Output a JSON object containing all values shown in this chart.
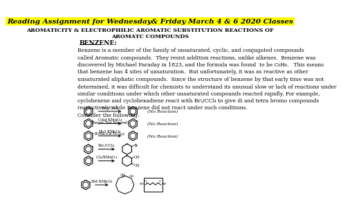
{
  "title_text": "Reading Assignment for Wednesday& Friday March 4 & 6 2020 Classes",
  "subtitle": "AROMATICITY & ELECTROPHILIC AROMATIC SUBSTITUTION REACTIONS OF\nAROMATC COMPOUNDS",
  "section": "BENZENE:",
  "body": "Benzene is a member of the family of unsaturated, cyclic, and conjugated compounds\ncalled Aromatic compounds.  They resist addition reactions, unlike alkenes.  Benzene was\ndiscovered by Michael Faraday in 1823, and the formula was found  to be C₆H₆.   This means\nthat benzene has 4 sites of unsaturation.  But unfortunately, it was as reactive as other\nunsaturated aliphatic compounds.  Since the structure of benzene by that early time was not\ndetermined, it was difficult for chemists to understand its unusual slow or lack of reactions under\nsimilar conditions under which other unsaturated compounds reacted rapidly. For example,\ncyclohexene and cyclohexadiene react with Br₂/CCl₄ to give di and tetra bromo compounds\nrespectively while Benzene did not react under such conditions.\nConsider the following:",
  "bg_color": "#ffffff",
  "title_bg": "#ffff00",
  "title_color": "#000000",
  "body_fontsize": 5.5,
  "title_fontsize": 7.5,
  "subtitle_fontsize": 5.8,
  "section_fontsize": 6.5
}
